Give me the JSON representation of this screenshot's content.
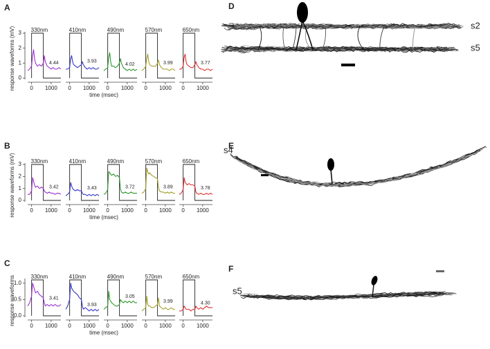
{
  "chart_data": [
    {
      "type": "line",
      "label": "A",
      "ylabel": "response waveforms (mV)",
      "xlabel": "time (msec)",
      "ylim": [
        0,
        3
      ],
      "yticks": [
        0,
        1,
        2,
        3
      ],
      "xlim": [
        -200,
        1500
      ],
      "xticks": [
        0,
        1000
      ],
      "stimulus": [
        0,
        600
      ],
      "x": [
        -200,
        -100,
        0,
        50,
        100,
        150,
        200,
        300,
        400,
        500,
        600,
        650,
        700,
        800,
        900,
        1000,
        1100,
        1200,
        1300,
        1400,
        1500
      ],
      "series": [
        {
          "name": "330nm",
          "color": "#9b30d0",
          "index": "4.44",
          "values": [
            0.5,
            0.6,
            0.8,
            1.5,
            1.9,
            1.3,
            1.0,
            0.8,
            0.9,
            0.8,
            1.0,
            1.5,
            1.1,
            0.8,
            0.7,
            0.6,
            0.7,
            0.6,
            0.6,
            0.7,
            0.6
          ]
        },
        {
          "name": "410nm",
          "color": "#3535c8",
          "index": "3.93",
          "values": [
            0.6,
            0.6,
            0.7,
            1.3,
            1.5,
            1.1,
            0.9,
            0.8,
            0.7,
            0.8,
            0.9,
            1.1,
            0.9,
            0.7,
            0.6,
            0.7,
            0.6,
            0.7,
            0.6,
            0.6,
            0.7
          ]
        },
        {
          "name": "490nm",
          "color": "#2f962f",
          "index": "4.02",
          "values": [
            0.5,
            0.6,
            0.7,
            1.4,
            1.7,
            1.1,
            0.8,
            0.8,
            0.7,
            0.8,
            1.0,
            1.3,
            1.0,
            0.7,
            0.6,
            0.5,
            0.6,
            0.5,
            0.6,
            0.5,
            0.6
          ]
        },
        {
          "name": "570nm",
          "color": "#a3a02a",
          "index": "3.99",
          "values": [
            0.5,
            0.6,
            0.8,
            1.3,
            1.6,
            1.1,
            0.9,
            0.8,
            0.8,
            0.8,
            1.0,
            1.2,
            0.9,
            0.7,
            0.6,
            0.6,
            0.6,
            0.5,
            0.6,
            0.6,
            0.5
          ]
        },
        {
          "name": "650nm",
          "color": "#e03030",
          "index": "3.77",
          "values": [
            0.6,
            0.6,
            0.8,
            1.4,
            1.6,
            1.1,
            0.9,
            0.8,
            0.7,
            0.7,
            0.9,
            1.1,
            0.9,
            0.7,
            0.6,
            0.6,
            0.5,
            0.6,
            0.6,
            0.5,
            0.6
          ]
        }
      ]
    },
    {
      "type": "line",
      "label": "B",
      "ylabel": "response waveforms (mV)",
      "xlabel": "time (msec)",
      "ylim": [
        0,
        3
      ],
      "yticks": [
        0,
        1,
        2,
        3
      ],
      "xlim": [
        -200,
        1500
      ],
      "xticks": [
        0,
        1000
      ],
      "stimulus": [
        0,
        600
      ],
      "x": [
        -200,
        -100,
        0,
        50,
        100,
        150,
        200,
        300,
        400,
        500,
        600,
        650,
        700,
        800,
        900,
        1000,
        1100,
        1200,
        1300,
        1400,
        1500
      ],
      "series": [
        {
          "name": "330nm",
          "color": "#9b30d0",
          "index": "3.42",
          "values": [
            0.5,
            0.5,
            0.8,
            1.9,
            1.6,
            1.3,
            1.1,
            1.2,
            1.0,
            1.1,
            1.0,
            0.8,
            0.7,
            0.6,
            0.7,
            0.6,
            0.6,
            0.5,
            0.6,
            0.6,
            0.5
          ]
        },
        {
          "name": "410nm",
          "color": "#3535c8",
          "index": "3.43",
          "values": [
            0.4,
            0.5,
            0.7,
            1.5,
            1.2,
            1.0,
            0.9,
            0.8,
            0.9,
            0.8,
            0.8,
            0.6,
            0.5,
            0.5,
            0.4,
            0.5,
            0.4,
            0.5,
            0.4,
            0.5,
            0.4
          ]
        },
        {
          "name": "490nm",
          "color": "#2f962f",
          "index": "3.72",
          "values": [
            0.5,
            0.6,
            0.9,
            2.4,
            2.3,
            2.2,
            2.1,
            2.2,
            2.0,
            2.1,
            1.9,
            1.0,
            0.7,
            0.6,
            0.7,
            0.6,
            0.6,
            0.7,
            0.6,
            0.6,
            0.6
          ]
        },
        {
          "name": "570nm",
          "color": "#a3a02a",
          "index": "3.89",
          "values": [
            0.6,
            0.7,
            1.0,
            2.7,
            2.4,
            2.2,
            2.3,
            2.1,
            2.0,
            1.9,
            1.8,
            1.1,
            0.8,
            0.7,
            0.7,
            0.6,
            0.7,
            0.6,
            0.7,
            0.6,
            0.6
          ]
        },
        {
          "name": "650nm",
          "color": "#e03030",
          "index": "3.78",
          "values": [
            0.5,
            0.6,
            0.9,
            1.9,
            1.5,
            1.4,
            1.3,
            1.4,
            1.3,
            1.3,
            1.2,
            0.7,
            0.6,
            0.5,
            0.6,
            0.5,
            0.5,
            0.6,
            0.5,
            0.6,
            0.5
          ]
        }
      ]
    },
    {
      "type": "line",
      "label": "C",
      "ylabel": "response waveforms",
      "xlabel": "time (msec)",
      "ylim": [
        0,
        1.1
      ],
      "yticks": [
        {
          "value": 0,
          "label": "0.0"
        },
        0.5,
        {
          "value": 1,
          "label": "1.0"
        }
      ],
      "xlim": [
        -200,
        1500
      ],
      "xticks": [
        0,
        1000
      ],
      "stimulus": [
        0,
        600
      ],
      "x": [
        -200,
        -100,
        0,
        50,
        100,
        150,
        200,
        300,
        400,
        500,
        600,
        650,
        700,
        800,
        900,
        1000,
        1100,
        1200,
        1300,
        1400,
        1500
      ],
      "series": [
        {
          "name": "330nm",
          "color": "#9b30d0",
          "index": "3.41",
          "values": [
            0.3,
            0.4,
            0.6,
            1.0,
            0.9,
            0.8,
            0.7,
            0.75,
            0.65,
            0.6,
            0.55,
            0.4,
            0.3,
            0.35,
            0.3,
            0.35,
            0.3,
            0.35,
            0.3,
            0.3,
            0.35
          ]
        },
        {
          "name": "410nm",
          "color": "#3535c8",
          "index": "3.93",
          "values": [
            0.2,
            0.3,
            0.5,
            1.0,
            0.85,
            0.8,
            0.75,
            0.7,
            0.65,
            0.55,
            0.5,
            0.3,
            0.2,
            0.25,
            0.2,
            0.15,
            0.2,
            0.15,
            0.2,
            0.15,
            0.2
          ]
        },
        {
          "name": "490nm",
          "color": "#2f962f",
          "index": "3.05",
          "values": [
            0.2,
            0.25,
            0.3,
            0.75,
            0.5,
            0.45,
            0.4,
            0.35,
            0.3,
            0.3,
            0.35,
            0.5,
            0.45,
            0.4,
            0.45,
            0.4,
            0.45,
            0.4,
            0.45,
            0.4,
            0.4
          ]
        },
        {
          "name": "570nm",
          "color": "#a3a02a",
          "index": "3.99",
          "values": [
            0.15,
            0.2,
            0.25,
            0.6,
            0.35,
            0.3,
            0.3,
            0.25,
            0.25,
            0.3,
            0.35,
            0.55,
            0.3,
            0.25,
            0.2,
            0.25,
            0.2,
            0.2,
            0.25,
            0.2,
            0.2
          ]
        },
        {
          "name": "650nm",
          "color": "#e03030",
          "index": "4.30",
          "values": [
            0.15,
            0.15,
            0.2,
            0.3,
            0.25,
            0.2,
            0.2,
            0.2,
            0.15,
            0.2,
            0.2,
            0.3,
            0.25,
            0.2,
            0.25,
            0.2,
            0.25,
            0.3,
            0.25,
            0.25,
            0.25
          ]
        }
      ]
    }
  ],
  "morphology": [
    {
      "label": "D",
      "strata": [
        "s2",
        "s5"
      ]
    },
    {
      "label": "E",
      "strata": [
        "s4"
      ]
    },
    {
      "label": "F",
      "strata": [
        "s5"
      ]
    }
  ]
}
